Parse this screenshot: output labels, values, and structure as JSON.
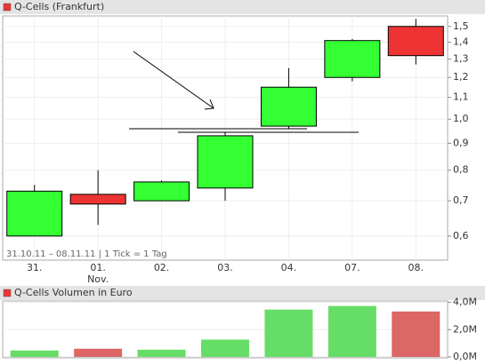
{
  "chart_data": [
    {
      "type": "candlestick",
      "title": "Q-Cells (Frankfurt)",
      "annotation": "31.10.11 – 08.11.11 | 1 Tick = 1 Tag",
      "categories": [
        "31.",
        "01.",
        "02.",
        "03.",
        "04.",
        "07.",
        "08."
      ],
      "sublabels": [
        null,
        "Nov.",
        null,
        null,
        null,
        null,
        null
      ],
      "open": [
        0.6,
        0.72,
        0.7,
        0.74,
        0.97,
        1.2,
        1.5
      ],
      "high": [
        0.75,
        0.8,
        0.765,
        0.945,
        1.25,
        1.42,
        1.55
      ],
      "low": [
        0.6,
        0.63,
        0.7,
        0.7,
        0.96,
        1.18,
        1.27
      ],
      "close": [
        0.73,
        0.69,
        0.76,
        0.93,
        1.15,
        1.41,
        1.32
      ],
      "up_color": "#33ff33",
      "down_color": "#ee3333",
      "log_scale": true,
      "grid": true,
      "ylim": [
        0.54,
        1.57
      ],
      "yticks": [
        {
          "value": 0.6,
          "label": "0,6"
        },
        {
          "value": 0.7,
          "label": "0,7"
        },
        {
          "value": 0.8,
          "label": "0,8"
        },
        {
          "value": 0.9,
          "label": "0,9"
        },
        {
          "value": 1.0,
          "label": "1,0"
        },
        {
          "value": 1.1,
          "label": "1,1"
        },
        {
          "value": 1.2,
          "label": "1,2"
        },
        {
          "value": 1.3,
          "label": "1,3"
        },
        {
          "value": 1.4,
          "label": "1,4"
        },
        {
          "value": 1.5,
          "label": "1,5"
        }
      ]
    },
    {
      "type": "bar",
      "title": "Q-Cells Volumen in Euro",
      "values": [
        470000,
        600000,
        530000,
        1270000,
        3470000,
        3730000,
        3330000
      ],
      "colors": [
        "#66dd66",
        "#dd6666",
        "#66dd66",
        "#66dd66",
        "#66dd66",
        "#66dd66",
        "#dd6666"
      ],
      "grid": true,
      "ylim": [
        0,
        4100000
      ],
      "yticks": [
        {
          "value": 0,
          "label": "0,0M"
        },
        {
          "value": 2000000,
          "label": "2,0M"
        },
        {
          "value": 4000000,
          "label": "4,0M"
        }
      ]
    }
  ]
}
